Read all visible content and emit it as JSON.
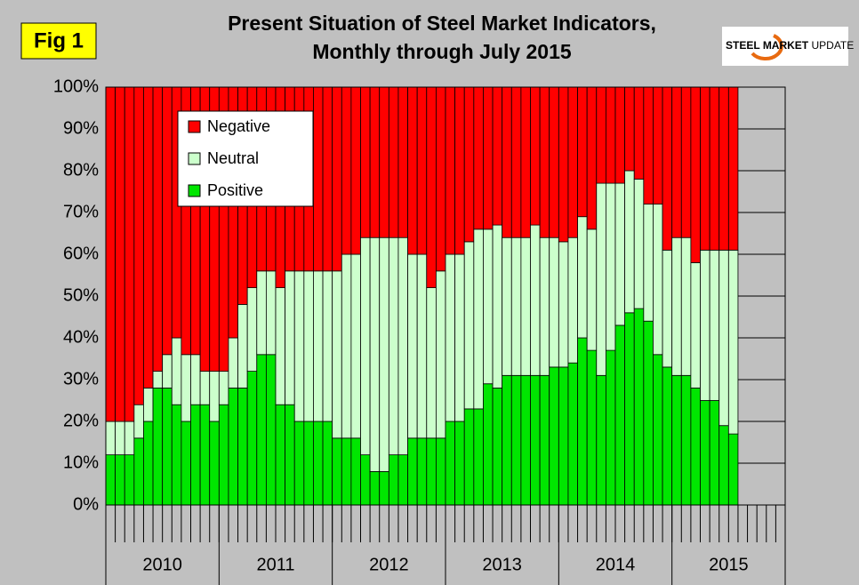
{
  "chart_data": {
    "type": "stacked_bar",
    "title_lines": [
      "Present Situation of Steel Market Indicators,",
      "Monthly through July 2015"
    ],
    "badge": "Fig 1",
    "logo": [
      "STEEL",
      "MARKET",
      "UPDATE"
    ],
    "categories": [
      null,
      null,
      null,
      null,
      null,
      null,
      null,
      null,
      null,
      null,
      null,
      null,
      null,
      null,
      null,
      null,
      null,
      null,
      null,
      null,
      null,
      null,
      null,
      null,
      null,
      null,
      null,
      null,
      null,
      null,
      null,
      null,
      null,
      null,
      null,
      null,
      null,
      null,
      null,
      null,
      null,
      null,
      null,
      null,
      null,
      null,
      null,
      null,
      null,
      null,
      null,
      null,
      null,
      null,
      null,
      null,
      null,
      null,
      null,
      null,
      null,
      null,
      null,
      null,
      null,
      null,
      null,
      null,
      null,
      null,
      null,
      null
    ],
    "groups": [
      "2010",
      "2011",
      "2012",
      "2013",
      "2014",
      "2015"
    ],
    "series": [
      {
        "name": "Positive",
        "color": "#00e600",
        "values": [
          12,
          12,
          12,
          16,
          20,
          28,
          28,
          24,
          20,
          24,
          24,
          20,
          24,
          28,
          28,
          32,
          36,
          36,
          24,
          24,
          20,
          20,
          20,
          20,
          16,
          16,
          16,
          12,
          8,
          8,
          12,
          12,
          16,
          16,
          16,
          16,
          20,
          20,
          23,
          23,
          29,
          28,
          31,
          31,
          31,
          31,
          31,
          33,
          33,
          34,
          40,
          37,
          31,
          37,
          43,
          46,
          47,
          44,
          36,
          33,
          31,
          31,
          28,
          25,
          25,
          19,
          17,
          null,
          null,
          null,
          null,
          null
        ]
      },
      {
        "name": "Neutral",
        "color": "#ccffcc",
        "values": [
          8,
          8,
          8,
          8,
          8,
          4,
          8,
          16,
          16,
          12,
          8,
          12,
          8,
          12,
          20,
          20,
          20,
          20,
          28,
          32,
          36,
          36,
          36,
          36,
          40,
          44,
          44,
          52,
          56,
          56,
          52,
          52,
          44,
          44,
          36,
          40,
          40,
          40,
          40,
          43,
          37,
          39,
          33,
          33,
          33,
          36,
          33,
          31,
          30,
          30,
          29,
          29,
          46,
          40,
          34,
          34,
          31,
          28,
          36,
          28,
          33,
          33,
          30,
          36,
          36,
          42,
          44,
          null,
          null,
          null,
          null,
          null
        ]
      },
      {
        "name": "Negative",
        "color": "#ff0000",
        "values": [
          80,
          80,
          80,
          76,
          72,
          68,
          64,
          60,
          64,
          64,
          68,
          68,
          68,
          60,
          52,
          48,
          44,
          44,
          48,
          44,
          44,
          44,
          44,
          44,
          44,
          40,
          40,
          36,
          36,
          36,
          36,
          36,
          40,
          40,
          48,
          44,
          40,
          40,
          37,
          34,
          34,
          33,
          36,
          36,
          36,
          33,
          36,
          36,
          37,
          36,
          31,
          34,
          23,
          23,
          23,
          20,
          22,
          28,
          28,
          39,
          36,
          36,
          42,
          39,
          39,
          39,
          39,
          null,
          null,
          null,
          null,
          null
        ]
      }
    ],
    "ylim": [
      0,
      100
    ],
    "yticks": [
      {
        "value": 0,
        "label": "0%"
      },
      {
        "value": 10,
        "label": "10%"
      },
      {
        "value": 20,
        "label": "20%"
      },
      {
        "value": 30,
        "label": "30%"
      },
      {
        "value": 40,
        "label": "40%"
      },
      {
        "value": 50,
        "label": "50%"
      },
      {
        "value": 60,
        "label": "60%"
      },
      {
        "value": 70,
        "label": "70%"
      },
      {
        "value": 80,
        "label": "80%"
      },
      {
        "value": 90,
        "label": "90%"
      },
      {
        "value": 100,
        "label": "100%"
      }
    ],
    "grid": true,
    "legend": "upper left"
  }
}
